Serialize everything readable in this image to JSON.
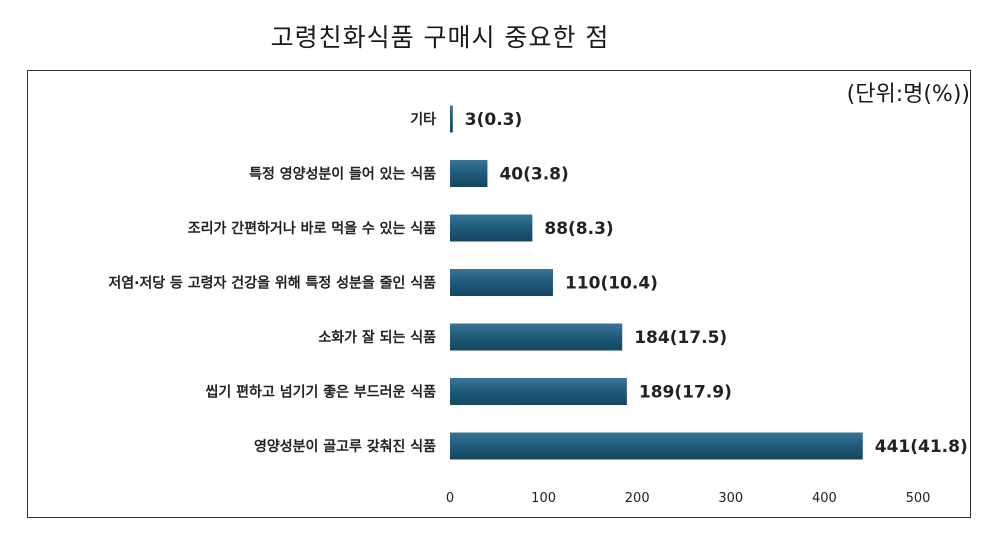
{
  "chart_data": {
    "type": "bar",
    "orientation": "horizontal",
    "title": "고령친화식품 구매시 중요한 점",
    "unit_note": "(단위:명(%))",
    "categories": [
      "기타",
      "특정 영양성분이 들어 있는 식품",
      "조리가 간편하거나 바로 먹을 수 있는 식품",
      "저염·저당 등 고령자 건강을 위해 특정 성분을 줄인 식품",
      "소화가 잘 되는 식품",
      "씹기 편하고 넘기기 좋은 부드러운 식품",
      "영양성분이 골고루 갖춰진 식품"
    ],
    "values": [
      3,
      40,
      88,
      110,
      184,
      189,
      441
    ],
    "data_labels": [
      "3(0.3)",
      "40(3.8)",
      "88(8.3)",
      "110(10.4)",
      "184(17.5)",
      "189(17.9)",
      "441(41.8)"
    ],
    "xlim": [
      0,
      500
    ],
    "xticks": [
      0,
      100,
      200,
      300,
      400,
      500
    ],
    "grid": false,
    "bar_color": "#1f5a7a"
  }
}
